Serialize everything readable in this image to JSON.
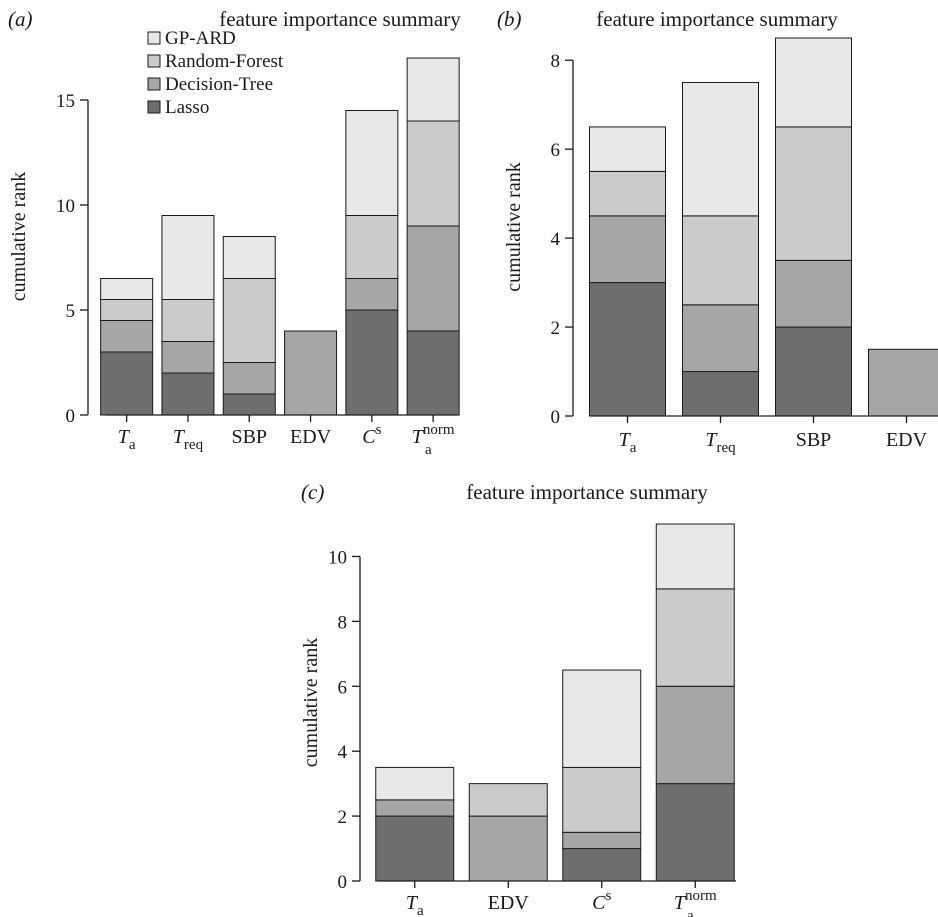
{
  "chart_data": [
    {
      "type": "bar",
      "stacked": true,
      "panel_label": "(a)",
      "title": "feature importance summary",
      "ylabel": "cumulative rank",
      "ylim": [
        0,
        17
      ],
      "yticks": [
        0,
        5,
        10,
        15
      ],
      "categories": [
        {
          "base": "T",
          "sub": "a",
          "sup": ""
        },
        {
          "base": "T",
          "sub": "req",
          "sup": ""
        },
        {
          "base": "SBP",
          "sub": "",
          "sup": ""
        },
        {
          "base": "EDV",
          "sub": "",
          "sup": ""
        },
        {
          "base": "C",
          "sub": "",
          "sup": "s"
        },
        {
          "base": "T",
          "sub": "a",
          "sup": "norm"
        }
      ],
      "series": [
        {
          "name": "Lasso",
          "color": "#6e6e6e",
          "values": [
            3,
            2,
            1,
            0,
            5,
            4
          ]
        },
        {
          "name": "Decision-Tree",
          "color": "#a6a6a6",
          "values": [
            1.5,
            1.5,
            1.5,
            4,
            1.5,
            5
          ]
        },
        {
          "name": "Random-Forest",
          "color": "#cbcbcb",
          "values": [
            1,
            2,
            4,
            0,
            3,
            5
          ]
        },
        {
          "name": "GP-ARD",
          "color": "#e8e8e8",
          "values": [
            1,
            4,
            2,
            0,
            5,
            3
          ]
        }
      ],
      "legend": {
        "position": "top-left",
        "order": [
          "GP-ARD",
          "Random-Forest",
          "Decision-Tree",
          "Lasso"
        ]
      }
    },
    {
      "type": "bar",
      "stacked": true,
      "panel_label": "(b)",
      "title": "feature importance summary",
      "ylabel": "cumulative rank",
      "ylim": [
        0,
        8.5
      ],
      "yticks": [
        0,
        2,
        4,
        6,
        8
      ],
      "categories": [
        {
          "base": "T",
          "sub": "a",
          "sup": ""
        },
        {
          "base": "T",
          "sub": "req",
          "sup": ""
        },
        {
          "base": "SBP",
          "sub": "",
          "sup": ""
        },
        {
          "base": "EDV",
          "sub": "",
          "sup": ""
        }
      ],
      "series": [
        {
          "name": "Lasso",
          "color": "#6e6e6e",
          "values": [
            3,
            1,
            2,
            0
          ]
        },
        {
          "name": "Decision-Tree",
          "color": "#a6a6a6",
          "values": [
            1.5,
            1.5,
            1.5,
            1.5
          ]
        },
        {
          "name": "Random-Forest",
          "color": "#cbcbcb",
          "values": [
            1,
            2,
            3,
            0
          ]
        },
        {
          "name": "GP-ARD",
          "color": "#e8e8e8",
          "values": [
            1,
            3,
            2,
            0
          ]
        }
      ]
    },
    {
      "type": "bar",
      "stacked": true,
      "panel_label": "(c)",
      "title": "feature importance summary",
      "ylabel": "cumulative rank",
      "ylim": [
        0,
        11
      ],
      "yticks": [
        0,
        2,
        4,
        6,
        8,
        10
      ],
      "categories": [
        {
          "base": "T",
          "sub": "a",
          "sup": ""
        },
        {
          "base": "EDV",
          "sub": "",
          "sup": ""
        },
        {
          "base": "C",
          "sub": "",
          "sup": "s"
        },
        {
          "base": "T",
          "sub": "a",
          "sup": "norm"
        }
      ],
      "series": [
        {
          "name": "Lasso",
          "color": "#6e6e6e",
          "values": [
            2,
            0,
            1,
            3
          ]
        },
        {
          "name": "Decision-Tree",
          "color": "#a6a6a6",
          "values": [
            0.5,
            2,
            0.5,
            3
          ]
        },
        {
          "name": "Random-Forest",
          "color": "#cbcbcb",
          "values": [
            0,
            1,
            2,
            3
          ]
        },
        {
          "name": "GP-ARD",
          "color": "#e8e8e8",
          "values": [
            1,
            0,
            3,
            2
          ]
        }
      ]
    }
  ]
}
